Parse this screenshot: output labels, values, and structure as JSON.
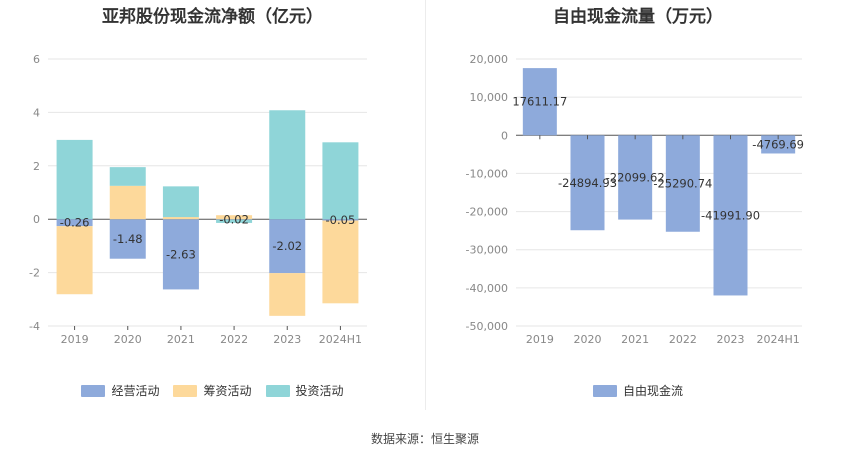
{
  "source": "数据来源：恒生聚源",
  "chart_data": [
    {
      "type": "bar",
      "stacked": true,
      "title": "亚邦股份现金流净额（亿元）",
      "categories": [
        "2019",
        "2020",
        "2021",
        "2022",
        "2023",
        "2024H1"
      ],
      "ylim": [
        -4,
        6
      ],
      "yticks": [
        -4,
        -2,
        0,
        2,
        4,
        6
      ],
      "grid": true,
      "legend_position": "bottom",
      "series": [
        {
          "name": "经营活动",
          "color": "#8eaadb",
          "values": [
            -0.26,
            -1.48,
            -2.63,
            -0.02,
            -2.02,
            -0.05
          ]
        },
        {
          "name": "筹资活动",
          "color": "#fdd99b",
          "values": [
            -2.55,
            1.25,
            0.08,
            0.15,
            -1.6,
            -3.1
          ]
        },
        {
          "name": "投资活动",
          "color": "#8fd5d8",
          "values": [
            2.97,
            0.7,
            1.15,
            -0.12,
            4.08,
            2.88
          ]
        }
      ],
      "data_labels": [
        "-0.26",
        "-1.48",
        "-2.63",
        "-0.02",
        "-2.02",
        "-0.05"
      ]
    },
    {
      "type": "bar",
      "title": "自由现金流量（万元）",
      "categories": [
        "2019",
        "2020",
        "2021",
        "2022",
        "2023",
        "2024H1"
      ],
      "ylim": [
        -50000,
        20000
      ],
      "yticks": [
        -50000,
        -40000,
        -30000,
        -20000,
        -10000,
        0,
        10000,
        20000
      ],
      "ytick_labels": [
        "-50,000",
        "-40,000",
        "-30,000",
        "-20,000",
        "-10,000",
        "0",
        "10,000",
        "20,000"
      ],
      "grid": true,
      "legend_position": "bottom",
      "series": [
        {
          "name": "自由现金流",
          "color": "#8eaadb",
          "values": [
            17611.17,
            -24894.93,
            -22099.62,
            -25290.74,
            -41991.9,
            -4769.69
          ]
        }
      ],
      "data_labels": [
        "17611.17",
        "-24894.93",
        "-22099.62",
        "-25290.74",
        "-41991.90",
        "-4769.69"
      ]
    }
  ]
}
